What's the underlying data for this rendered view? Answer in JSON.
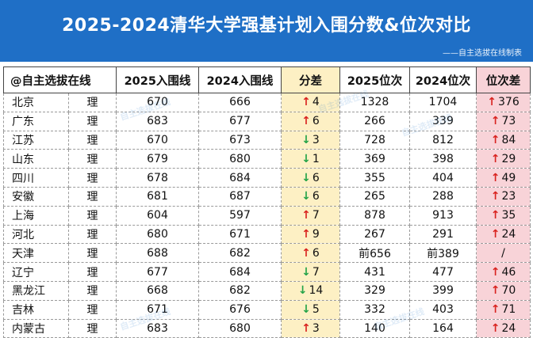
{
  "header": {
    "title": "2025-2024清华大学强基计划入围分数&位次对比",
    "subtitle": "——自主选拔在线制表"
  },
  "table": {
    "columns": [
      "@自主选拔在线",
      "2025入围线",
      "2024入围线",
      "分差",
      "2025位次",
      "2024位次",
      "位次差"
    ],
    "rows": [
      {
        "province": "北京",
        "type": "理",
        "s2025": "670",
        "s2024": "666",
        "diff_dir": "up",
        "diff": "4",
        "r2025": "1328",
        "r2024": "1704",
        "rank_dir": "up",
        "rank_diff": "376"
      },
      {
        "province": "广东",
        "type": "理",
        "s2025": "683",
        "s2024": "677",
        "diff_dir": "up",
        "diff": "6",
        "r2025": "266",
        "r2024": "339",
        "rank_dir": "up",
        "rank_diff": "73"
      },
      {
        "province": "江苏",
        "type": "理",
        "s2025": "670",
        "s2024": "673",
        "diff_dir": "down",
        "diff": "3",
        "r2025": "728",
        "r2024": "812",
        "rank_dir": "up",
        "rank_diff": "84"
      },
      {
        "province": "山东",
        "type": "理",
        "s2025": "679",
        "s2024": "680",
        "diff_dir": "down",
        "diff": "1",
        "r2025": "369",
        "r2024": "398",
        "rank_dir": "up",
        "rank_diff": "29"
      },
      {
        "province": "四川",
        "type": "理",
        "s2025": "678",
        "s2024": "684",
        "diff_dir": "down",
        "diff": "6",
        "r2025": "355",
        "r2024": "404",
        "rank_dir": "up",
        "rank_diff": "49"
      },
      {
        "province": "安徽",
        "type": "理",
        "s2025": "681",
        "s2024": "687",
        "diff_dir": "down",
        "diff": "6",
        "r2025": "265",
        "r2024": "288",
        "rank_dir": "up",
        "rank_diff": "23"
      },
      {
        "province": "上海",
        "type": "理",
        "s2025": "604",
        "s2024": "597",
        "diff_dir": "up",
        "diff": "7",
        "r2025": "878",
        "r2024": "913",
        "rank_dir": "up",
        "rank_diff": "35"
      },
      {
        "province": "河北",
        "type": "理",
        "s2025": "680",
        "s2024": "671",
        "diff_dir": "up",
        "diff": "9",
        "r2025": "267",
        "r2024": "291",
        "rank_dir": "up",
        "rank_diff": "24"
      },
      {
        "province": "天津",
        "type": "理",
        "s2025": "688",
        "s2024": "682",
        "diff_dir": "up",
        "diff": "6",
        "r2025": "前656",
        "r2024": "前389",
        "rank_dir": "none",
        "rank_diff": "/"
      },
      {
        "province": "辽宁",
        "type": "理",
        "s2025": "677",
        "s2024": "684",
        "diff_dir": "down",
        "diff": "7",
        "r2025": "431",
        "r2024": "477",
        "rank_dir": "up",
        "rank_diff": "46"
      },
      {
        "province": "黑龙江",
        "type": "理",
        "s2025": "668",
        "s2024": "682",
        "diff_dir": "down",
        "diff": "14",
        "r2025": "329",
        "r2024": "399",
        "rank_dir": "up",
        "rank_diff": "70"
      },
      {
        "province": "吉林",
        "type": "理",
        "s2025": "671",
        "s2024": "676",
        "diff_dir": "down",
        "diff": "5",
        "r2025": "332",
        "r2024": "403",
        "rank_dir": "up",
        "rank_diff": "71"
      },
      {
        "province": "内蒙古",
        "type": "理",
        "s2025": "683",
        "s2024": "680",
        "diff_dir": "up",
        "diff": "3",
        "r2025": "140",
        "r2024": "164",
        "rank_dir": "up",
        "rank_diff": "24"
      }
    ]
  },
  "icons": {
    "up": "arrow-up-icon",
    "down": "arrow-down-icon"
  },
  "colors": {
    "banner": "#1f6fc6",
    "diff_column": "#fdf0c4",
    "rank_column": "#f8d3d8",
    "up_arrow": "#d9231f",
    "down_arrow": "#23a348"
  }
}
